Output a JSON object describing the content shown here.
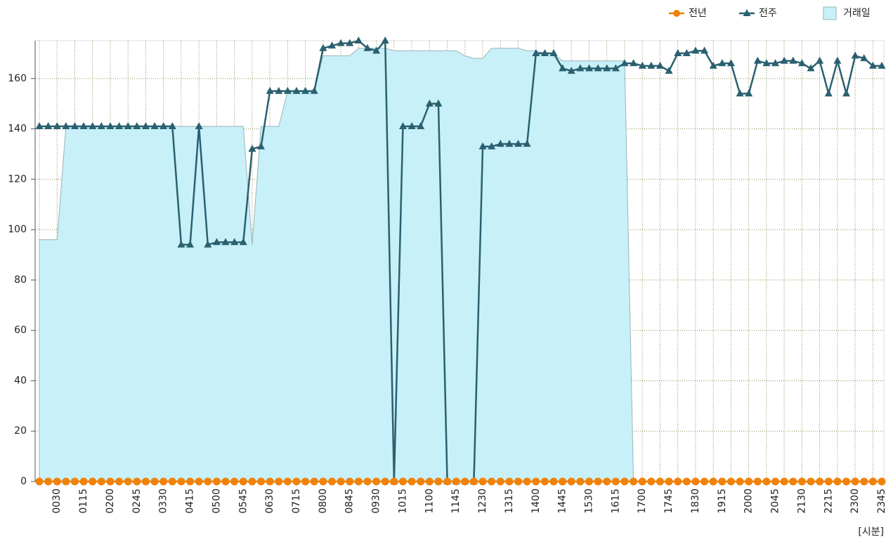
{
  "chart_data": {
    "type": "line",
    "x_label": "[시분]",
    "categories": [
      null,
      null,
      "0030",
      null,
      null,
      "0115",
      null,
      null,
      "0200",
      null,
      null,
      "0245",
      null,
      null,
      "0330",
      null,
      null,
      "0415",
      null,
      null,
      "0500",
      null,
      null,
      "0545",
      null,
      null,
      "0630",
      null,
      null,
      "0715",
      null,
      null,
      "0800",
      null,
      null,
      "0845",
      null,
      null,
      "0930",
      null,
      null,
      "1015",
      null,
      null,
      "1100",
      null,
      null,
      "1145",
      null,
      null,
      "1230",
      null,
      null,
      "1315",
      null,
      null,
      "1400",
      null,
      null,
      "1445",
      null,
      null,
      "1530",
      null,
      null,
      "1615",
      null,
      null,
      "1700",
      null,
      null,
      "1745",
      null,
      null,
      "1830",
      null,
      null,
      "1915",
      null,
      null,
      "2000",
      null,
      null,
      "2045",
      null,
      null,
      "2130",
      null,
      null,
      "2215",
      null,
      null,
      "2300",
      null,
      null,
      "2345"
    ],
    "ylim": [
      0,
      175
    ],
    "yticks": [
      0,
      20,
      40,
      60,
      80,
      100,
      120,
      140,
      160
    ],
    "grid": true,
    "legend": "top-right",
    "series": [
      {
        "name": "거래일",
        "type": "area",
        "color": "#c8f0f8",
        "values": [
          96,
          96,
          96,
          141,
          141,
          141,
          141,
          141,
          141,
          141,
          141,
          141,
          141,
          141,
          141,
          141,
          141,
          141,
          141,
          141,
          141,
          141,
          141,
          141,
          94,
          141,
          141,
          141,
          155,
          155,
          155,
          155,
          169,
          169,
          169,
          169,
          172,
          172,
          172,
          172,
          171,
          171,
          171,
          171,
          171,
          171,
          171,
          171,
          169,
          168,
          168,
          172,
          172,
          172,
          172,
          171,
          171,
          170,
          170,
          167,
          167,
          167,
          167,
          167,
          167,
          167,
          167,
          0,
          null,
          null,
          null,
          null,
          null,
          null,
          null,
          null,
          null,
          null,
          null,
          null,
          null,
          null,
          null,
          null,
          null,
          null,
          null,
          null,
          null,
          null,
          null,
          null,
          null,
          null,
          null,
          null
        ]
      },
      {
        "name": "전년",
        "type": "line",
        "marker": "circle",
        "color": "#f0820a",
        "values": [
          0,
          0,
          0,
          0,
          0,
          0,
          0,
          0,
          0,
          0,
          0,
          0,
          0,
          0,
          0,
          0,
          0,
          0,
          0,
          0,
          0,
          0,
          0,
          0,
          0,
          0,
          0,
          0,
          0,
          0,
          0,
          0,
          0,
          0,
          0,
          0,
          0,
          0,
          0,
          0,
          0,
          0,
          0,
          0,
          0,
          0,
          0,
          0,
          0,
          0,
          0,
          0,
          0,
          0,
          0,
          0,
          0,
          0,
          0,
          0,
          0,
          0,
          0,
          0,
          0,
          0,
          0,
          0,
          0,
          0,
          0,
          0,
          0,
          0,
          0,
          0,
          0,
          0,
          0,
          0,
          0,
          0,
          0,
          0,
          0,
          0,
          0,
          0,
          0,
          0,
          0,
          0,
          0,
          0,
          0,
          0
        ]
      },
      {
        "name": "전주",
        "type": "line",
        "marker": "triangle",
        "color": "#2a6070",
        "values": [
          141,
          141,
          141,
          141,
          141,
          141,
          141,
          141,
          141,
          141,
          141,
          141,
          141,
          141,
          141,
          141,
          94,
          94,
          141,
          94,
          95,
          95,
          95,
          95,
          132,
          133,
          155,
          155,
          155,
          155,
          155,
          155,
          172,
          173,
          174,
          174,
          175,
          172,
          171,
          175,
          0,
          141,
          141,
          141,
          150,
          150,
          0,
          0,
          0,
          0,
          133,
          133,
          134,
          134,
          134,
          134,
          170,
          170,
          170,
          164,
          163,
          164,
          164,
          164,
          164,
          164,
          166,
          166,
          165,
          165,
          165,
          163,
          170,
          170,
          171,
          171,
          165,
          166,
          166,
          154,
          154,
          167,
          166,
          166,
          167,
          167,
          166,
          164,
          167,
          154,
          167,
          154,
          169,
          168,
          165,
          165
        ]
      }
    ]
  }
}
